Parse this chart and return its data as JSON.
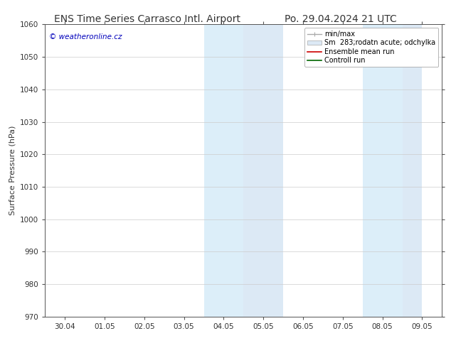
{
  "title_left": "ENS Time Series Carrasco Intl. Airport",
  "title_right": "Po. 29.04.2024 21 UTC",
  "ylabel": "Surface Pressure (hPa)",
  "ylim": [
    970,
    1060
  ],
  "yticks": [
    970,
    980,
    990,
    1000,
    1010,
    1020,
    1030,
    1040,
    1050,
    1060
  ],
  "xlim_start": -0.5,
  "xlim_end": 9.5,
  "xtick_labels": [
    "30.04",
    "01.05",
    "02.05",
    "03.05",
    "04.05",
    "05.05",
    "06.05",
    "07.05",
    "08.05",
    "09.05"
  ],
  "xtick_positions": [
    0,
    1,
    2,
    3,
    4,
    5,
    6,
    7,
    8,
    9
  ],
  "shaded_bands": [
    {
      "xmin": 3.5,
      "xmax": 4.0,
      "color": "#dceef9"
    },
    {
      "xmin": 4.0,
      "xmax": 4.5,
      "color": "#dceef9"
    },
    {
      "xmin": 4.5,
      "xmax": 5.5,
      "color": "#dce9f5"
    },
    {
      "xmin": 7.5,
      "xmax": 8.0,
      "color": "#dceef9"
    },
    {
      "xmin": 8.0,
      "xmax": 8.5,
      "color": "#dceef9"
    },
    {
      "xmin": 8.5,
      "xmax": 9.0,
      "color": "#dce9f5"
    }
  ],
  "watermark_text": "© weatheronline.cz",
  "watermark_color": "#0000bb",
  "bg_color": "#ffffff",
  "grid_color": "#cccccc",
  "axis_color": "#555555",
  "title_fontsize": 10,
  "label_fontsize": 8,
  "tick_fontsize": 7.5,
  "font_color": "#333333",
  "legend_fontsize": 7,
  "legend_loc": "upper right"
}
